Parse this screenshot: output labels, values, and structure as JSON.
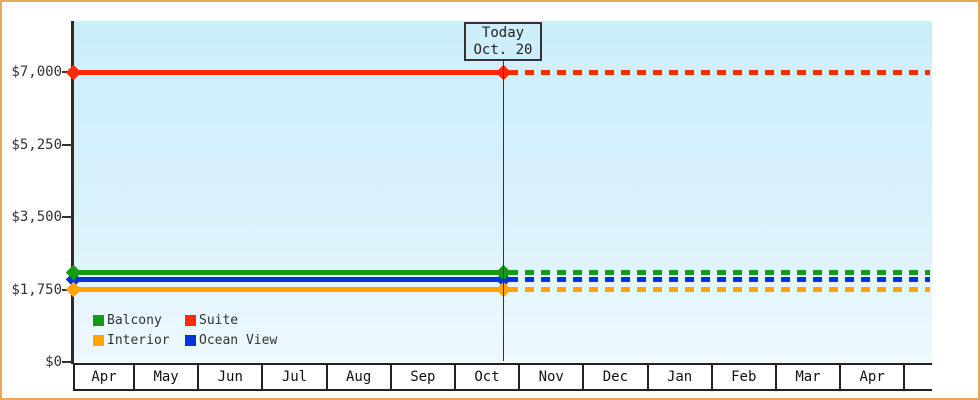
{
  "page": {
    "border_color": "#eaa957",
    "plot_bg_top": "#cbeefb",
    "plot_bg_bottom": "#eef9fe"
  },
  "today_marker": {
    "line1": "Today",
    "line2": "Oct. 20"
  },
  "legend": {
    "items": [
      {
        "label": "Balcony",
        "color": "#149b14"
      },
      {
        "label": "Suite",
        "color": "#ff2a00"
      },
      {
        "label": "Interior",
        "color": "#ffa500"
      },
      {
        "label": "Ocean View",
        "color": "#0433dd"
      }
    ]
  },
  "chart_data": {
    "type": "line",
    "title": "",
    "xlabel": "",
    "ylabel": "",
    "x_categories": [
      "Apr",
      "May",
      "Jun",
      "Jul",
      "Aug",
      "Sep",
      "Oct",
      "Nov",
      "Dec",
      "Jan",
      "Feb",
      "Mar",
      "Apr"
    ],
    "yticks": [
      {
        "label": "$0",
        "value": 0
      },
      {
        "label": "$1,750",
        "value": 1750
      },
      {
        "label": "$3,500",
        "value": 3500
      },
      {
        "label": "$5,250",
        "value": 5250
      },
      {
        "label": "$7,000",
        "value": 7000
      }
    ],
    "ylim": [
      0,
      7250
    ],
    "grid": false,
    "legend_position": "bottom-left-inside",
    "series": [
      {
        "name": "Suite",
        "color": "#ff2a00",
        "value": 7000,
        "style": "solid-then-dashed"
      },
      {
        "name": "Ocean View",
        "color": "#0433dd",
        "value": 1980,
        "style": "solid-then-dashed"
      },
      {
        "name": "Balcony",
        "color": "#149b14",
        "value": 2150,
        "style": "solid-then-dashed"
      },
      {
        "name": "Interior",
        "color": "#ffa500",
        "value": 1750,
        "style": "solid-then-dashed"
      }
    ],
    "today": {
      "month_index": 6,
      "day": 20,
      "days_in_month": 31
    },
    "annotation": "Lines are flat (constant price); solid before today, dashed projection after today; diamond markers at axis start and at today."
  }
}
